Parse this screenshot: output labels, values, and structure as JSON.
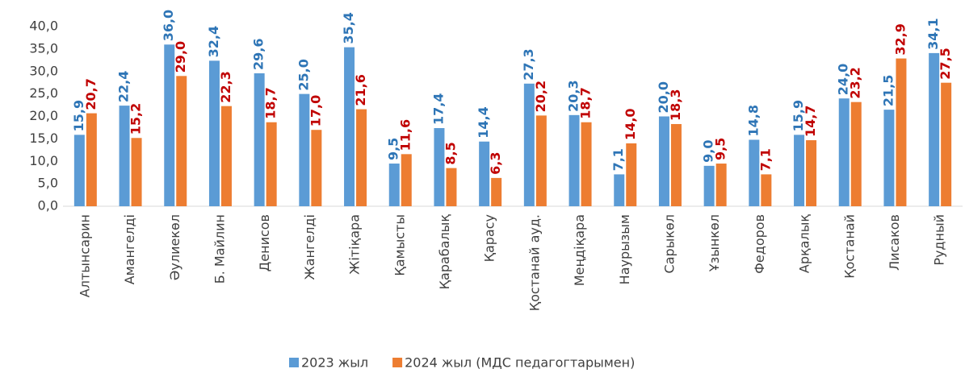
{
  "chart_data": {
    "type": "bar",
    "categories": [
      "Алтынсарин",
      "Амангелді",
      "Әулиекөл",
      "Б. Майлин",
      "Денисов",
      "Жангелді",
      "Жітіқара",
      "Қамысты",
      "Қарабалық",
      "Қарасу",
      "Қостанай ауд.",
      "Меңдіқара",
      "Наурызым",
      "Сарыкөл",
      "Ұзынкөл",
      "Федоров",
      "Арқалық",
      "Қостанай",
      "Лисаков",
      "Рудный"
    ],
    "series": [
      {
        "name": "2023 жыл",
        "color": "#5b9bd5",
        "label_color": "#2e75b6",
        "values": [
          15.9,
          22.4,
          36.0,
          32.4,
          29.6,
          25.0,
          35.4,
          9.5,
          17.4,
          14.4,
          27.3,
          20.3,
          7.1,
          20.0,
          9.0,
          14.8,
          15.9,
          24.0,
          21.5,
          34.1
        ],
        "value_labels": [
          "15,9",
          "22,4",
          "36,0",
          "32,4",
          "29,6",
          "25,0",
          "35,4",
          "9,5",
          "17,4",
          "14,4",
          "27,3",
          "20,3",
          "7,1",
          "20,0",
          "9,0",
          "14,8",
          "15,9",
          "24,0",
          "21,5",
          "34,1"
        ]
      },
      {
        "name": "2024 жыл (МДС педагогтарымен)",
        "color": "#ed7d31",
        "label_color": "#c00000",
        "values": [
          20.7,
          15.2,
          29.0,
          22.3,
          18.7,
          17.0,
          21.6,
          11.6,
          8.5,
          6.3,
          20.2,
          18.7,
          14.0,
          18.3,
          9.5,
          7.1,
          14.7,
          23.2,
          32.9,
          27.5
        ],
        "value_labels": [
          "20,7",
          "15,2",
          "29,0",
          "22,3",
          "18,7",
          "17,0",
          "21,6",
          "11,6",
          "8,5",
          "6,3",
          "20,2",
          "18,7",
          "14,0",
          "18,3",
          "9,5",
          "7,1",
          "14,7",
          "23,2",
          "32,9",
          "27,5"
        ]
      }
    ],
    "ylim": [
      0,
      40
    ],
    "yticks": [
      {
        "value": 0,
        "label": "0,0"
      },
      {
        "value": 5,
        "label": "5,0"
      },
      {
        "value": 10,
        "label": "10,0"
      },
      {
        "value": 15,
        "label": "15,0"
      },
      {
        "value": 20,
        "label": "20,0"
      },
      {
        "value": 25,
        "label": "25,0"
      },
      {
        "value": 30,
        "label": "30,0"
      },
      {
        "value": 35,
        "label": "35,0"
      },
      {
        "value": 40,
        "label": "40,0"
      }
    ],
    "legend": "bottom"
  }
}
